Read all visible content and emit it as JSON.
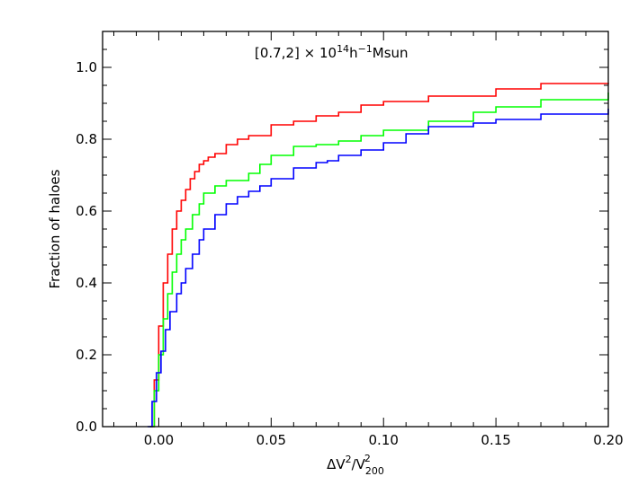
{
  "chart_data": {
    "type": "line",
    "title": "",
    "annotation": {
      "prefix": "[0.7,2] × 10",
      "sup1": "14",
      "mid": "h",
      "sup2": "−1",
      "suffix": "Msun"
    },
    "xlabel": {
      "base": "ΔV",
      "sup": "2",
      "slash": "/V",
      "sub": "200",
      "sup2": "2"
    },
    "ylabel": "Fraction of haloes",
    "xlim": [
      -0.025,
      0.2
    ],
    "ylim": [
      0.0,
      1.1
    ],
    "xticks": [
      "0.00",
      "0.05",
      "0.10",
      "0.15",
      "0.20"
    ],
    "xtick_values": [
      0.0,
      0.05,
      0.1,
      0.15,
      0.2
    ],
    "yticks": [
      "0.0",
      "0.2",
      "0.4",
      "0.6",
      "0.8",
      "1.0"
    ],
    "ytick_values": [
      0.0,
      0.2,
      0.4,
      0.6,
      0.8,
      1.0
    ],
    "grid": false,
    "series": [
      {
        "color": "#ff0000",
        "x": [
          -0.004,
          -0.002,
          0.0,
          0.002,
          0.004,
          0.006,
          0.008,
          0.01,
          0.012,
          0.014,
          0.016,
          0.018,
          0.02,
          0.022,
          0.025,
          0.03,
          0.035,
          0.04,
          0.05,
          0.06,
          0.07,
          0.08,
          0.09,
          0.1,
          0.12,
          0.15,
          0.17,
          0.2
        ],
        "y": [
          0.0,
          0.13,
          0.28,
          0.4,
          0.48,
          0.55,
          0.6,
          0.63,
          0.66,
          0.69,
          0.71,
          0.73,
          0.74,
          0.75,
          0.76,
          0.785,
          0.8,
          0.81,
          0.84,
          0.85,
          0.865,
          0.875,
          0.895,
          0.905,
          0.92,
          0.94,
          0.955,
          0.957
        ]
      },
      {
        "color": "#00ff00",
        "x": [
          -0.004,
          -0.002,
          0.0,
          0.002,
          0.004,
          0.006,
          0.008,
          0.01,
          0.012,
          0.015,
          0.018,
          0.02,
          0.025,
          0.03,
          0.04,
          0.045,
          0.05,
          0.06,
          0.07,
          0.08,
          0.09,
          0.1,
          0.12,
          0.14,
          0.15,
          0.17,
          0.2
        ],
        "y": [
          0.0,
          0.1,
          0.2,
          0.3,
          0.37,
          0.43,
          0.48,
          0.52,
          0.55,
          0.59,
          0.62,
          0.65,
          0.67,
          0.685,
          0.705,
          0.73,
          0.755,
          0.78,
          0.785,
          0.795,
          0.81,
          0.825,
          0.85,
          0.875,
          0.89,
          0.91,
          0.93
        ]
      },
      {
        "color": "#0000ff",
        "x": [
          -0.005,
          -0.003,
          -0.001,
          0.001,
          0.003,
          0.005,
          0.008,
          0.01,
          0.012,
          0.015,
          0.018,
          0.02,
          0.025,
          0.03,
          0.035,
          0.04,
          0.045,
          0.05,
          0.06,
          0.07,
          0.075,
          0.08,
          0.09,
          0.1,
          0.11,
          0.12,
          0.14,
          0.15,
          0.17,
          0.2
        ],
        "y": [
          0.0,
          0.07,
          0.15,
          0.21,
          0.27,
          0.32,
          0.37,
          0.4,
          0.44,
          0.48,
          0.52,
          0.55,
          0.59,
          0.62,
          0.64,
          0.655,
          0.67,
          0.69,
          0.72,
          0.735,
          0.74,
          0.755,
          0.77,
          0.79,
          0.815,
          0.835,
          0.845,
          0.855,
          0.87,
          0.885
        ]
      }
    ]
  }
}
